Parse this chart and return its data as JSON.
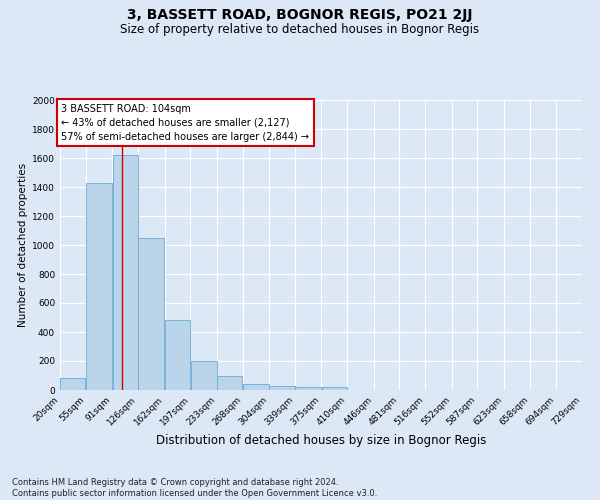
{
  "title": "3, BASSETT ROAD, BOGNOR REGIS, PO21 2JJ",
  "subtitle": "Size of property relative to detached houses in Bognor Regis",
  "xlabel": "Distribution of detached houses by size in Bognor Regis",
  "ylabel": "Number of detached properties",
  "bins": [
    20,
    55,
    91,
    126,
    162,
    197,
    233,
    268,
    304,
    339,
    375,
    410,
    446,
    481,
    516,
    552,
    587,
    623,
    658,
    694,
    729
  ],
  "bin_labels": [
    "20sqm",
    "55sqm",
    "91sqm",
    "126sqm",
    "162sqm",
    "197sqm",
    "233sqm",
    "268sqm",
    "304sqm",
    "339sqm",
    "375sqm",
    "410sqm",
    "446sqm",
    "481sqm",
    "516sqm",
    "552sqm",
    "587sqm",
    "623sqm",
    "658sqm",
    "694sqm",
    "729sqm"
  ],
  "values": [
    80,
    1430,
    1620,
    1050,
    480,
    200,
    100,
    40,
    25,
    20,
    18,
    0,
    0,
    0,
    0,
    0,
    0,
    0,
    0,
    0
  ],
  "bar_color": "#bad4ea",
  "bar_edge_color": "#6aaad4",
  "background_color": "#dce8f5",
  "plot_bg_color": "#dce8f5",
  "grid_color": "#ffffff",
  "red_line_x": 104,
  "annotation_text": "3 BASSETT ROAD: 104sqm\n← 43% of detached houses are smaller (2,127)\n57% of semi-detached houses are larger (2,844) →",
  "annotation_box_color": "#ffffff",
  "annotation_border_color": "#cc0000",
  "ylim": [
    0,
    2000
  ],
  "yticks": [
    0,
    200,
    400,
    600,
    800,
    1000,
    1200,
    1400,
    1600,
    1800,
    2000
  ],
  "footnote": "Contains HM Land Registry data © Crown copyright and database right 2024.\nContains public sector information licensed under the Open Government Licence v3.0.",
  "title_fontsize": 10,
  "subtitle_fontsize": 8.5,
  "xlabel_fontsize": 8.5,
  "ylabel_fontsize": 7.5,
  "tick_fontsize": 6.5,
  "annotation_fontsize": 7,
  "footnote_fontsize": 6
}
